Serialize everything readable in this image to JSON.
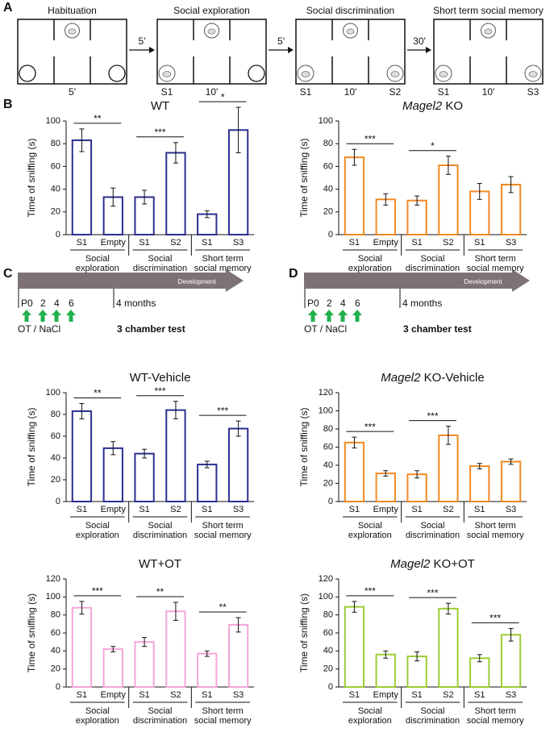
{
  "panels": [
    "A",
    "B",
    "C",
    "D"
  ],
  "diagram": {
    "stages": [
      {
        "title": "Habituation",
        "duration": "5'",
        "left_label": null,
        "right_label": null
      },
      {
        "title": "Social exploration",
        "duration": "10'",
        "left_label": "S1",
        "right_label": null
      },
      {
        "title": "Social discrimination",
        "duration": "10'",
        "left_label": "S1",
        "right_label": "S2"
      },
      {
        "title": "Short term social memory",
        "duration": "10'",
        "left_label": "S1",
        "right_label": "S3"
      }
    ],
    "intervals": [
      "5'",
      "5'",
      "30'"
    ]
  },
  "timelines": [
    {
      "band": "Development",
      "ages": [
        "P0",
        "2",
        "4",
        "6"
      ],
      "test_age": "4 months",
      "treatment": "OT / NaCl",
      "test": "3 chamber test"
    },
    {
      "band": "Development",
      "ages": [
        "P0",
        "2",
        "4",
        "6"
      ],
      "test_age": "4 months",
      "treatment": "OT / NaCl",
      "test": "3 chamber test"
    }
  ],
  "chart_data": [
    {
      "type": "bar",
      "title": "WT",
      "title_italic_first_word": false,
      "ylabel": "Time of sniffing (s)",
      "categories": [
        "S1",
        "Empty",
        "S1",
        "S2",
        "S1",
        "S3"
      ],
      "groups": [
        [
          "Social",
          "exploration"
        ],
        [
          "Social",
          "discrimination"
        ],
        [
          "Short term",
          "social memory"
        ]
      ],
      "values": [
        83,
        33,
        33,
        72,
        18,
        92
      ],
      "errors": [
        10,
        8,
        6,
        9,
        3,
        20
      ],
      "significance": [
        "**",
        "***",
        "*"
      ],
      "color": "#2b2f8f",
      "ylim": [
        0,
        100
      ],
      "yticks": [
        0,
        20,
        40,
        60,
        80,
        100
      ]
    },
    {
      "type": "bar",
      "title": "Magel2 KO",
      "title_italic_first_word": true,
      "ylabel": "Time of sniffing (s)",
      "categories": [
        "S1",
        "Empty",
        "S1",
        "S2",
        "S1",
        "S3"
      ],
      "groups": [
        [
          "Social",
          "exploration"
        ],
        [
          "Social",
          "discrimination"
        ],
        [
          "Short term",
          "social memory"
        ]
      ],
      "values": [
        68,
        31,
        30,
        61,
        38,
        44
      ],
      "errors": [
        7,
        5,
        4,
        8,
        7,
        7
      ],
      "significance": [
        "***",
        "*",
        null
      ],
      "color": "#f08a24",
      "ylim": [
        0,
        100
      ],
      "yticks": [
        0,
        20,
        40,
        60,
        80,
        100
      ]
    },
    {
      "type": "bar",
      "title": "WT-Vehicle",
      "title_italic_first_word": false,
      "ylabel": "Time of sniffing (s)",
      "categories": [
        "S1",
        "Empty",
        "S1",
        "S2",
        "S1",
        "S3"
      ],
      "groups": [
        [
          "Social",
          "exploration"
        ],
        [
          "Social",
          "discrimination"
        ],
        [
          "Short term",
          "social memory"
        ]
      ],
      "values": [
        83,
        49,
        44,
        84,
        34,
        67
      ],
      "errors": [
        7,
        6,
        4,
        8,
        3,
        7
      ],
      "significance": [
        "**",
        "***",
        "***"
      ],
      "color": "#2b2f8f",
      "ylim": [
        0,
        100
      ],
      "yticks": [
        0,
        20,
        40,
        60,
        80,
        100
      ]
    },
    {
      "type": "bar",
      "title": "Magel2 KO-Vehicle",
      "title_italic_first_word": true,
      "ylabel": "Time of sniffing (s)",
      "categories": [
        "S1",
        "Empty",
        "S1",
        "S2",
        "S1",
        "S3"
      ],
      "groups": [
        [
          "Social",
          "exploration"
        ],
        [
          "Social",
          "discrimination"
        ],
        [
          "Short term",
          "social memory"
        ]
      ],
      "values": [
        65,
        31,
        30,
        73,
        39,
        44
      ],
      "errors": [
        6,
        3,
        4,
        10,
        3,
        3
      ],
      "significance": [
        "***",
        "***",
        null
      ],
      "color": "#f08a24",
      "ylim": [
        0,
        120
      ],
      "yticks": [
        0,
        20,
        40,
        60,
        80,
        100,
        120
      ]
    },
    {
      "type": "bar",
      "title": "WT+OT",
      "title_italic_first_word": false,
      "ylabel": "Time of sniffing (s)",
      "categories": [
        "S1",
        "Empty",
        "S1",
        "S2",
        "S1",
        "S3"
      ],
      "groups": [
        [
          "Social",
          "exploration"
        ],
        [
          "Social",
          "discrimination"
        ],
        [
          "Short term",
          "social memory"
        ]
      ],
      "values": [
        88,
        42,
        50,
        84,
        37,
        69
      ],
      "errors": [
        7,
        3,
        5,
        10,
        3,
        8
      ],
      "significance": [
        "***",
        "**",
        "**"
      ],
      "color": "#f4a6d8",
      "ylim": [
        0,
        120
      ],
      "yticks": [
        0,
        20,
        40,
        60,
        80,
        100,
        120
      ]
    },
    {
      "type": "bar",
      "title": "Magel2 KO+OT",
      "title_italic_first_word": true,
      "ylabel": "Time of sniffing (s)",
      "categories": [
        "S1",
        "Empty",
        "S1",
        "S2",
        "S1",
        "S3"
      ],
      "groups": [
        [
          "Social",
          "exploration"
        ],
        [
          "Social",
          "discrimination"
        ],
        [
          "Short term",
          "social memory"
        ]
      ],
      "values": [
        89,
        36,
        34,
        87,
        32,
        58
      ],
      "errors": [
        6,
        4,
        5,
        6,
        4,
        7
      ],
      "significance": [
        "***",
        "***",
        "***"
      ],
      "color": "#9ccc35",
      "ylim": [
        0,
        120
      ],
      "yticks": [
        0,
        20,
        40,
        60,
        80,
        100,
        120
      ]
    }
  ]
}
